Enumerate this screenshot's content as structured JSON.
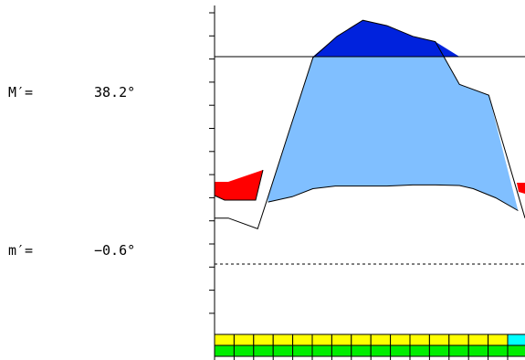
{
  "readouts": {
    "max_label": "M′=",
    "max_value": "38.2°",
    "min_label": "m′=",
    "min_value": "−0.6°"
  },
  "chart_data": {
    "type": "area",
    "max_line": 38.2,
    "min_line": -0.6,
    "ylim": [
      -20,
      56
    ],
    "x": [
      0,
      1,
      2,
      3,
      4,
      5,
      6,
      7,
      8,
      9,
      10,
      11,
      12,
      13,
      14,
      15,
      16,
      17,
      18
    ],
    "upper_curve": [
      8,
      8,
      6,
      12,
      23,
      38,
      42,
      45,
      44,
      42,
      41,
      33,
      31,
      8
    ],
    "upper_curve_x": [
      0,
      0.8,
      2.5,
      3.1,
      4.2,
      5.7,
      7.1,
      8.6,
      10,
      11.5,
      12.8,
      14.2,
      15.9,
      18
    ],
    "lower_curve": [
      11,
      12,
      13.5,
      14,
      14,
      14,
      14.2,
      14.2,
      14.1,
      13.5,
      11.8,
      9.4
    ],
    "lower_curve_x": [
      3.1,
      4.5,
      5.7,
      7,
      8.6,
      10,
      11.5,
      12.8,
      14.2,
      15,
      16.3,
      17.6
    ],
    "bottom_bar_rows": [
      {
        "colors": [
          "#ffff00",
          "#ffff00",
          "#ffff00",
          "#ffff00",
          "#ffff00",
          "#ffff00",
          "#ffff00",
          "#ffff00",
          "#ffff00",
          "#ffff00",
          "#ffff00",
          "#ffff00",
          "#ffff00",
          "#ffff00",
          "#ffff00",
          "#00ffff"
        ]
      },
      {
        "colors": [
          "#00ee00",
          "#00ee00",
          "#00ee00",
          "#00ee00",
          "#00ee00",
          "#00ee00",
          "#00ee00",
          "#00ee00",
          "#00ee00",
          "#00ee00",
          "#00ee00",
          "#00ee00",
          "#00ee00",
          "#00ee00",
          "#00ee00",
          "#00ee00"
        ]
      }
    ],
    "colors": {
      "above_max": "#0022dd",
      "between": "#80bfff",
      "below_min_hot": "#ff0000",
      "axis": "#000000"
    }
  }
}
